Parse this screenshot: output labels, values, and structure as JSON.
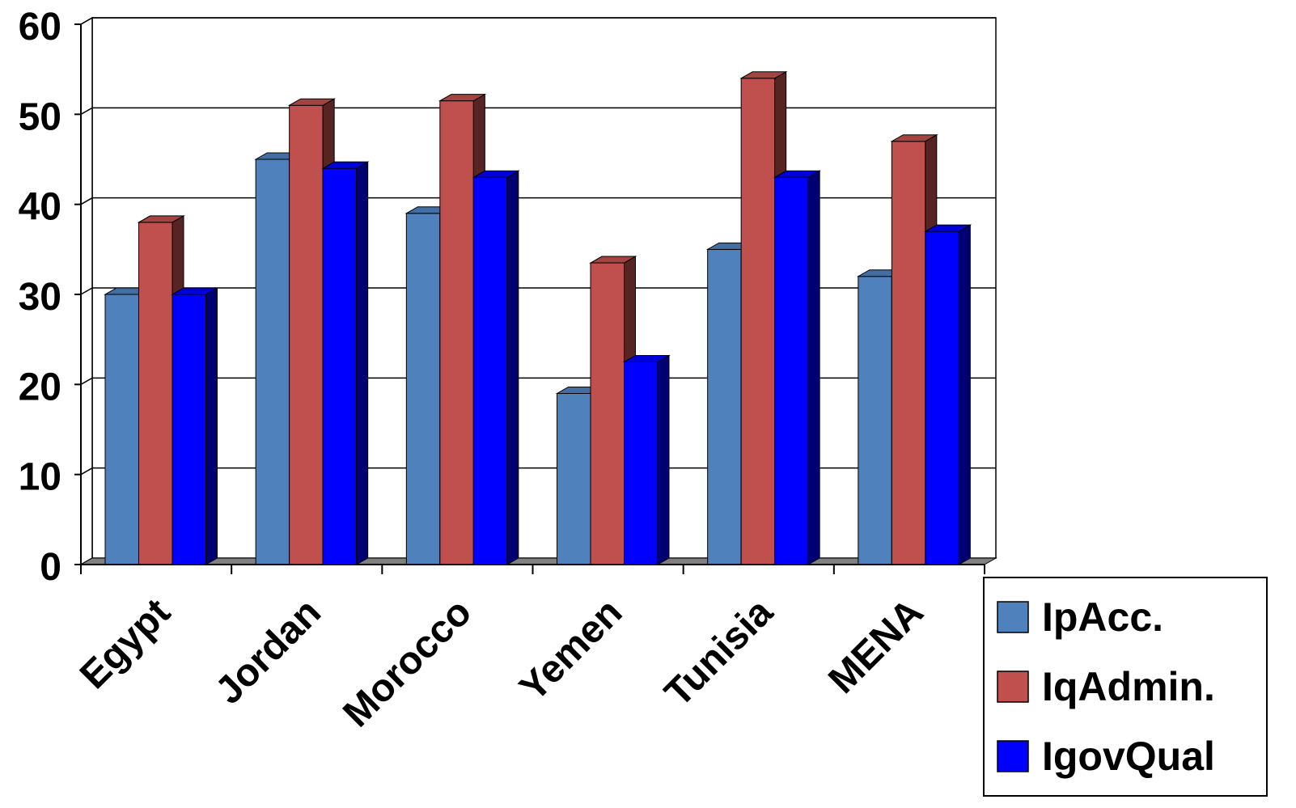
{
  "chart_data": {
    "type": "bar",
    "style": "3d-clustered-column",
    "title": "",
    "xlabel": "",
    "ylabel": "",
    "categories": [
      "Egypt",
      "Jordan",
      "Morocco",
      "Yemen",
      "Tunisia",
      "MENA"
    ],
    "series": [
      {
        "name": "IpAcc.",
        "color": "#4f81bd",
        "values": [
          30,
          45,
          39,
          19,
          35,
          32
        ]
      },
      {
        "name": "IqAdmin.",
        "color": "#c0504d",
        "values": [
          38,
          51,
          51.5,
          33.5,
          54,
          47
        ]
      },
      {
        "name": "IgovQual",
        "color": "#0000ff",
        "values": [
          30,
          44,
          43,
          22.5,
          43,
          37
        ]
      }
    ],
    "ylim": [
      0,
      60
    ],
    "yticks": [
      0,
      10,
      20,
      30,
      40,
      50,
      60
    ],
    "grid": true,
    "legend_position": "bottom-right"
  }
}
